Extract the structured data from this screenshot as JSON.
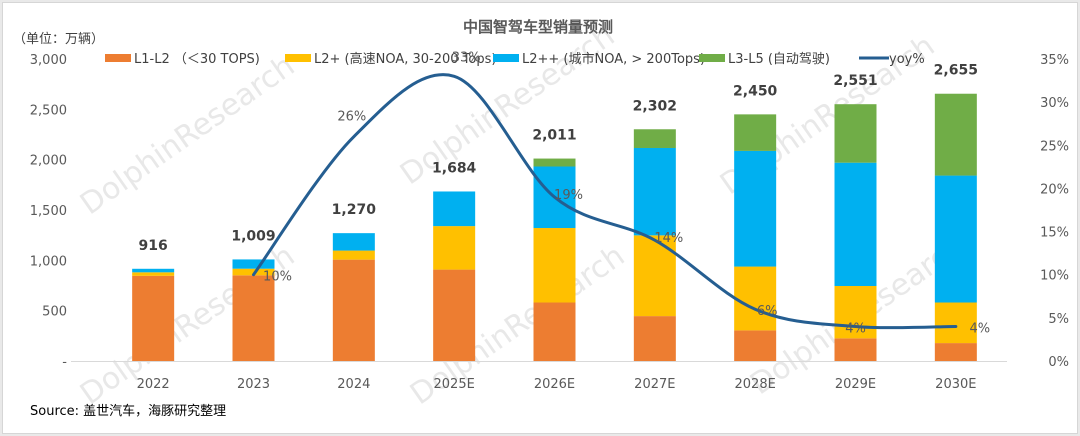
{
  "chart_data": {
    "type": "bar",
    "subtype": "stacked-bar-with-line",
    "title": "中国智驾车型销量预测",
    "unit_label": "（单位：万辆）",
    "source": "Source: 盖世汽车，海豚研究整理",
    "watermark": "DolphinResearch",
    "categories": [
      "2022",
      "2023",
      "2024",
      "2025E",
      "2026E",
      "2027E",
      "2028E",
      "2029E",
      "2030E"
    ],
    "series": [
      {
        "name": "L1-L2 （＜30 TOPS)",
        "color": "#ed7d31",
        "axis": "left",
        "values": [
          846,
          851,
          1007,
          908,
          581,
          446,
          304,
          225,
          178
        ]
      },
      {
        "name": "L2+ (高速NOA, 30-200 Tops)",
        "color": "#ffc000",
        "axis": "left",
        "values": [
          35,
          66,
          90,
          432,
          740,
          802,
          634,
          520,
          403
        ]
      },
      {
        "name": "L2++ (城市NOA, > 200Tops)",
        "color": "#00b0f0",
        "axis": "left",
        "values": [
          35,
          92,
          173,
          344,
          611,
          868,
          1149,
          1225,
          1261
        ]
      },
      {
        "name": "L3-L5 (自动驾驶)",
        "color": "#70ad47",
        "axis": "left",
        "values": [
          0,
          0,
          0,
          0,
          79,
          186,
          363,
          581,
          813
        ]
      }
    ],
    "totals": [
      916,
      1009,
      1270,
      1684,
      2011,
      2302,
      2450,
      2551,
      2655
    ],
    "totals_labels": [
      "916",
      "1,009",
      "1,270",
      "1,684",
      "2,011",
      "2,302",
      "2,450",
      "2,551",
      "2,655"
    ],
    "line": {
      "name": "yoy%",
      "color": "#255e91",
      "axis": "right",
      "values": [
        null,
        10,
        26,
        33,
        19,
        14,
        6,
        4,
        4
      ],
      "labels": [
        null,
        "10%",
        "26%",
        "33%",
        "19%",
        "14%",
        "6%",
        "4%",
        "4%"
      ]
    },
    "y_left": {
      "ylim": [
        0,
        3000
      ],
      "ticks": [
        0,
        500,
        1000,
        1500,
        2000,
        2500,
        3000
      ],
      "tick_labels": [
        "-",
        "500",
        "1,000",
        "1,500",
        "2,000",
        "2,500",
        "3,000"
      ]
    },
    "y_right": {
      "ylim": [
        0,
        35
      ],
      "ticks": [
        0,
        5,
        10,
        15,
        20,
        25,
        30,
        35
      ],
      "tick_labels": [
        "0%",
        "5%",
        "10%",
        "15%",
        "20%",
        "25%",
        "30%",
        "35%"
      ]
    },
    "xlabel": "",
    "ylabel": "",
    "grid": false,
    "legend_position": "top"
  }
}
